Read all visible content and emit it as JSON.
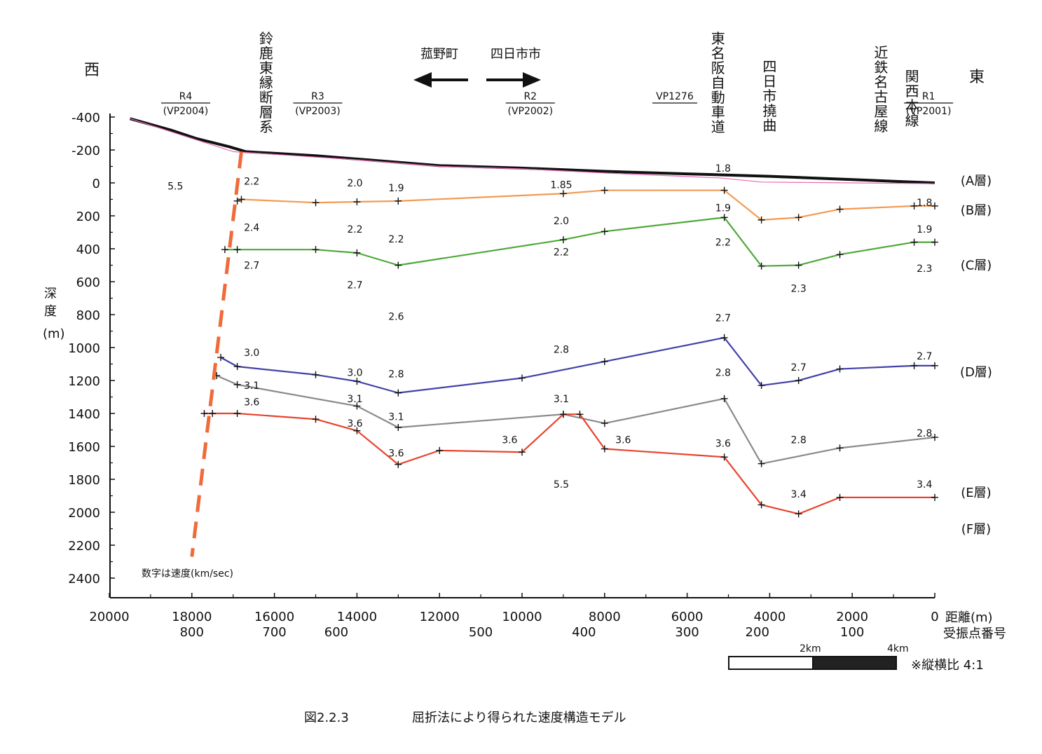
{
  "chart_data": {
    "type": "line",
    "caption": {
      "figure_no": "図2.2.3",
      "title": "屈折法により得られた速度構造モデル"
    },
    "direction": {
      "west": "西",
      "east": "東"
    },
    "towns": {
      "left": "菰野町",
      "right": "四日市市"
    },
    "ylabel": "深度(m)",
    "ylabel_chars": [
      "深",
      "度",
      "(m)"
    ],
    "xlabel": "距離(m)",
    "x2label": "受振点番号",
    "note": "数字は速度(km/sec)",
    "scalebar": {
      "label1": "2km",
      "label2": "4km",
      "ratio": "※縦横比 4:1"
    },
    "xlim": [
      20000,
      0
    ],
    "ylim": [
      2500,
      -480
    ],
    "x_ticks": [
      20000,
      18000,
      16000,
      14000,
      12000,
      10000,
      8000,
      6000,
      4000,
      2000,
      0
    ],
    "y_ticks": [
      -400,
      -200,
      0,
      200,
      400,
      600,
      800,
      1000,
      1200,
      1400,
      1600,
      1800,
      2000,
      2200,
      2400
    ],
    "tick_labels": [
      "20000",
      "18000",
      "16000",
      "14000",
      "12000",
      "10000",
      "8000",
      "6000",
      "4000",
      "2000",
      "0",
      "-400",
      "-200",
      "0",
      "200",
      "400",
      "600",
      "800",
      "1000",
      "1200",
      "1400",
      "1600",
      "1800",
      "2000",
      "2200",
      "2400"
    ],
    "receiver_ticks": [
      {
        "x": 18000,
        "label": "800"
      },
      {
        "x": 16000,
        "label": "700"
      },
      {
        "x": 14500,
        "label": "600"
      },
      {
        "x": 11000,
        "label": "500"
      },
      {
        "x": 8500,
        "label": "400"
      },
      {
        "x": 6000,
        "label": "300"
      },
      {
        "x": 4300,
        "label": "200"
      },
      {
        "x": 2000,
        "label": "100"
      }
    ],
    "surface": {
      "x": [
        19500,
        18500,
        17900,
        17100,
        16700,
        15000,
        14000,
        13000,
        12000,
        10000,
        8000,
        6000,
        4000,
        2000,
        0
      ],
      "y": [
        -390,
        -320,
        -270,
        -220,
        -190,
        -165,
        -145,
        -125,
        -105,
        -90,
        -70,
        -55,
        -40,
        -20,
        0
      ]
    },
    "series": [
      {
        "name": "(A層)",
        "color": "#e96ab4",
        "x": [
          19500,
          17000,
          14000,
          12000,
          10000,
          8000,
          5200,
          4200,
          2000,
          0
        ],
        "y": [
          -390,
          -190,
          -140,
          -100,
          -85,
          -60,
          -30,
          -5,
          0,
          5
        ]
      },
      {
        "name": "(B層)",
        "color": "#f39a52",
        "x": [
          16900,
          16800,
          15000,
          14000,
          13000,
          9000,
          8000,
          5100,
          4200,
          3300,
          2300,
          500,
          0
        ],
        "y": [
          110,
          100,
          120,
          115,
          110,
          65,
          45,
          45,
          225,
          210,
          160,
          140,
          140
        ]
      },
      {
        "name": "(C層)",
        "color": "#4ea93a",
        "x": [
          17200,
          16900,
          15000,
          14000,
          13000,
          9000,
          8000,
          5100,
          4200,
          3300,
          2300,
          500,
          0
        ],
        "y": [
          405,
          405,
          405,
          425,
          500,
          345,
          295,
          210,
          505,
          500,
          435,
          360,
          360
        ]
      },
      {
        "name": "(D層)",
        "color": "#4242a8",
        "x": [
          17300,
          16900,
          15000,
          14000,
          13000,
          10000,
          8000,
          5100,
          4200,
          3300,
          2300,
          500,
          0
        ],
        "y": [
          1060,
          1115,
          1165,
          1205,
          1275,
          1185,
          1085,
          940,
          1230,
          1200,
          1130,
          1110,
          1110
        ]
      },
      {
        "name": "(E層)",
        "color": "#8a8a8a",
        "x": [
          17400,
          16900,
          14000,
          13000,
          9000,
          8000,
          5100,
          4200,
          2300,
          0
        ],
        "y": [
          1170,
          1225,
          1355,
          1485,
          1405,
          1460,
          1310,
          1705,
          1610,
          1545
        ]
      },
      {
        "name": "(F層)",
        "color": "#e8442f",
        "x": [
          17700,
          17500,
          16900,
          15000,
          14000,
          13000,
          12000,
          10000,
          9000,
          8600,
          8000,
          5100,
          4200,
          3300,
          2300,
          0
        ],
        "y": [
          1400,
          1400,
          1400,
          1435,
          1505,
          1710,
          1625,
          1635,
          1405,
          1405,
          1615,
          1665,
          1955,
          2010,
          1910,
          1910
        ]
      }
    ],
    "fault": {
      "name": "鈴鹿東縁断層系",
      "x": [
        16800,
        18000
      ],
      "y": [
        -190,
        2270
      ],
      "color": "#ef6b3a"
    },
    "annotations": [
      {
        "text": "5.5",
        "x": 18400,
        "y": 20
      },
      {
        "text": "2.2",
        "x": 16550,
        "y": -10
      },
      {
        "text": "2.0",
        "x": 14050,
        "y": 0
      },
      {
        "text": "1.9",
        "x": 13050,
        "y": 30
      },
      {
        "text": "1.85",
        "x": 9050,
        "y": 10
      },
      {
        "text": "1.8",
        "x": 5130,
        "y": -90
      },
      {
        "text": "1.8",
        "x": 250,
        "y": 120
      },
      {
        "text": "2.4",
        "x": 16550,
        "y": 270
      },
      {
        "text": "2.2",
        "x": 14050,
        "y": 280
      },
      {
        "text": "2.2",
        "x": 13050,
        "y": 340
      },
      {
        "text": "2.0",
        "x": 9050,
        "y": 230
      },
      {
        "text": "1.9",
        "x": 5130,
        "y": 150
      },
      {
        "text": "1.9",
        "x": 250,
        "y": 280
      },
      {
        "text": "2.7",
        "x": 16550,
        "y": 500
      },
      {
        "text": "2.7",
        "x": 14050,
        "y": 620
      },
      {
        "text": "2.6",
        "x": 13050,
        "y": 810
      },
      {
        "text": "2.2",
        "x": 9050,
        "y": 420
      },
      {
        "text": "2.2",
        "x": 5130,
        "y": 360
      },
      {
        "text": "2.3",
        "x": 3300,
        "y": 640
      },
      {
        "text": "2.3",
        "x": 250,
        "y": 520
      },
      {
        "text": "2.7",
        "x": 5130,
        "y": 820
      },
      {
        "text": "3.0",
        "x": 16550,
        "y": 1030
      },
      {
        "text": "3.0",
        "x": 14050,
        "y": 1150
      },
      {
        "text": "2.8",
        "x": 13050,
        "y": 1160
      },
      {
        "text": "2.8",
        "x": 9050,
        "y": 1010
      },
      {
        "text": "2.8",
        "x": 5130,
        "y": 1150
      },
      {
        "text": "2.7",
        "x": 3300,
        "y": 1120
      },
      {
        "text": "2.7",
        "x": 250,
        "y": 1050
      },
      {
        "text": "3.1",
        "x": 16550,
        "y": 1230
      },
      {
        "text": "3.1",
        "x": 14050,
        "y": 1310
      },
      {
        "text": "3.1",
        "x": 13050,
        "y": 1420
      },
      {
        "text": "3.1",
        "x": 9050,
        "y": 1310
      },
      {
        "text": "3.6",
        "x": 16550,
        "y": 1330
      },
      {
        "text": "3.6",
        "x": 14050,
        "y": 1460
      },
      {
        "text": "3.6",
        "x": 13050,
        "y": 1640
      },
      {
        "text": "3.6",
        "x": 10300,
        "y": 1560
      },
      {
        "text": "3.6",
        "x": 7550,
        "y": 1560
      },
      {
        "text": "3.6",
        "x": 5130,
        "y": 1580
      },
      {
        "text": "2.8",
        "x": 3300,
        "y": 1560
      },
      {
        "text": "2.8",
        "x": 250,
        "y": 1520
      },
      {
        "text": "5.5",
        "x": 9050,
        "y": 1830
      },
      {
        "text": "3.4",
        "x": 3300,
        "y": 1890
      },
      {
        "text": "3.4",
        "x": 250,
        "y": 1830
      }
    ],
    "top_labels": [
      {
        "label": "R4",
        "sub": "(VP2004)",
        "x": 18150
      },
      {
        "label": "R3",
        "sub": "(VP2003)",
        "x": 14950
      },
      {
        "label": "R2",
        "sub": "(VP2002)",
        "x": 9800
      },
      {
        "label": "R1",
        "sub": "(VP2001)",
        "x": 150
      }
    ],
    "vp_label": {
      "text": "VP1276",
      "x": 6300
    },
    "vertical_labels": [
      {
        "text": "鈴鹿東縁断層系",
        "x": 16200
      },
      {
        "text": "東名阪自動車道",
        "x": 5250
      },
      {
        "text": "四日市撓曲",
        "x": 4000
      },
      {
        "text": "近鉄名古屋線",
        "x": 1300
      },
      {
        "text": "関西本線",
        "x": 550
      }
    ]
  }
}
